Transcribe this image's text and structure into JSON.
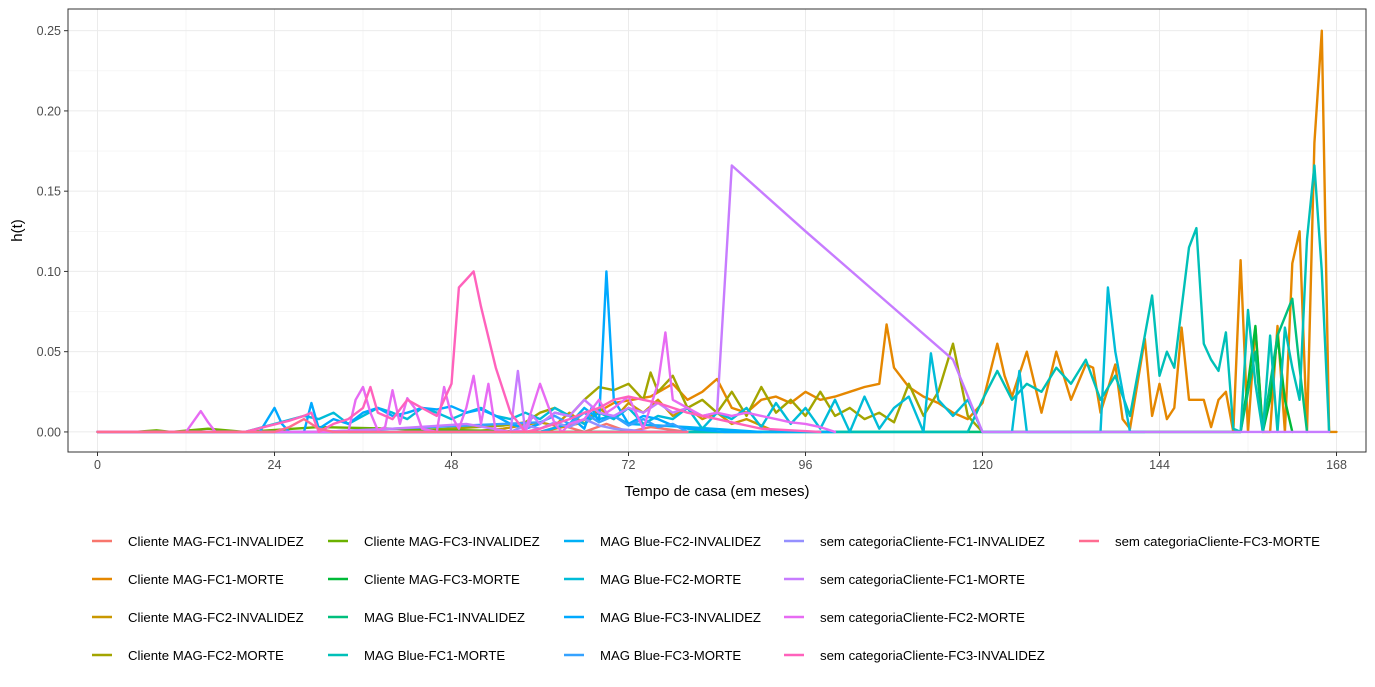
{
  "chart_data": {
    "type": "line",
    "title": "",
    "xlabel": "Tempo de casa (em meses)",
    "ylabel": "h(t)",
    "xlim": [
      -4,
      172
    ],
    "ylim": [
      -0.0125,
      0.2635
    ],
    "x_ticks": [
      0,
      24,
      48,
      72,
      96,
      120,
      144,
      168
    ],
    "x_tick_labels": [
      "0",
      "24",
      "48",
      "72",
      "96",
      "120",
      "144",
      "168"
    ],
    "y_ticks": [
      0,
      0.05,
      0.1,
      0.15,
      0.2,
      0.25
    ],
    "y_tick_labels": [
      "0.00",
      "0.05",
      "0.10",
      "0.15",
      "0.20",
      "0.25"
    ],
    "grid": true,
    "legend_position": "bottom",
    "series": [
      {
        "name": "Cliente MAG-FC1-INVALIDEZ",
        "color": "#F8766D",
        "x": [
          0,
          20,
          40,
          60,
          63,
          66,
          69,
          72,
          75,
          80,
          90
        ],
        "y": [
          0,
          0,
          0,
          0,
          0.004,
          0,
          0.005,
          0,
          0.003,
          0,
          0
        ]
      },
      {
        "name": "Cliente MAG-FC1-MORTE",
        "color": "#E58700",
        "x": [
          0,
          20,
          40,
          60,
          65,
          70,
          75,
          78,
          80,
          82,
          84,
          86,
          88,
          90,
          92,
          94,
          96,
          98,
          100,
          102,
          104,
          106,
          107,
          108,
          110,
          112,
          114,
          116,
          118,
          120,
          122,
          123,
          124,
          126,
          128,
          130,
          132,
          134,
          135,
          136,
          138,
          139,
          140,
          141,
          142,
          143,
          144,
          145,
          146,
          147,
          148,
          150,
          151,
          152,
          153,
          154,
          155,
          156,
          157,
          158,
          159,
          160,
          161,
          162,
          163,
          164,
          165,
          166,
          167,
          168
        ],
        "y": [
          0,
          0,
          0,
          0,
          0.005,
          0.018,
          0.022,
          0.03,
          0.02,
          0.025,
          0.033,
          0.015,
          0.012,
          0.02,
          0.022,
          0.018,
          0.025,
          0.02,
          0.022,
          0.025,
          0.028,
          0.03,
          0.067,
          0.04,
          0.028,
          0.022,
          0.018,
          0.012,
          0.008,
          0.018,
          0.055,
          0.035,
          0.022,
          0.05,
          0.012,
          0.05,
          0.02,
          0.042,
          0.04,
          0.012,
          0.042,
          0.008,
          0.002,
          0.03,
          0.058,
          0.01,
          0.03,
          0.008,
          0.015,
          0.065,
          0.02,
          0.02,
          0.003,
          0.02,
          0.025,
          0.0,
          0.107,
          0.0,
          0.065,
          0.0,
          0.0,
          0.066,
          0.0,
          0.105,
          0.125,
          0.0,
          0.18,
          0.25,
          0.0,
          0.0
        ]
      },
      {
        "name": "Cliente MAG-FC2-INVALIDEZ",
        "color": "#C99800",
        "x": [
          0,
          20,
          40,
          50,
          55,
          60,
          62,
          64,
          66,
          68,
          70,
          72,
          74,
          76,
          78,
          80,
          82,
          84,
          86,
          88,
          90,
          92
        ],
        "y": [
          0,
          0,
          0,
          0,
          0.002,
          0.006,
          0.004,
          0.012,
          0.005,
          0.015,
          0.008,
          0.018,
          0.012,
          0.02,
          0.01,
          0.015,
          0.008,
          0.012,
          0.005,
          0.008,
          0.004,
          0
        ]
      },
      {
        "name": "Cliente MAG-FC2-MORTE",
        "color": "#A3A500",
        "x": [
          0,
          20,
          40,
          55,
          58,
          60,
          62,
          64,
          66,
          68,
          70,
          72,
          74,
          75,
          76,
          78,
          80,
          82,
          84,
          86,
          88,
          90,
          92,
          94,
          96,
          98,
          100,
          102,
          104,
          106,
          108,
          110,
          112,
          114,
          116,
          118,
          120
        ],
        "y": [
          0,
          0,
          0,
          0.004,
          0.006,
          0.012,
          0.015,
          0.01,
          0.02,
          0.028,
          0.026,
          0.03,
          0.02,
          0.037,
          0.025,
          0.035,
          0.015,
          0.02,
          0.012,
          0.025,
          0.01,
          0.028,
          0.012,
          0.02,
          0.01,
          0.025,
          0.01,
          0.015,
          0.008,
          0.012,
          0.006,
          0.03,
          0.01,
          0.025,
          0.055,
          0.01,
          0
        ]
      },
      {
        "name": "Cliente MAG-FC3-INVALIDEZ",
        "color": "#6BB100",
        "x": [
          0,
          5,
          8,
          10,
          15,
          20,
          30,
          40,
          60,
          80
        ],
        "y": [
          0,
          0,
          0.001,
          0,
          0.002,
          0,
          0.003,
          0.002,
          0,
          0
        ]
      },
      {
        "name": "Cliente MAG-FC3-MORTE",
        "color": "#00BA38",
        "x": [
          0,
          60,
          120,
          140,
          155,
          156,
          157,
          158,
          159,
          160,
          161,
          162
        ],
        "y": [
          0,
          0,
          0,
          0,
          0,
          0.03,
          0.066,
          0.0,
          0.02,
          0.06,
          0.02,
          0
        ]
      },
      {
        "name": "MAG Blue-FC1-INVALIDEZ",
        "color": "#00BF7D",
        "x": [
          0,
          60,
          120,
          140,
          150,
          155,
          157,
          158,
          160,
          162,
          163,
          164
        ],
        "y": [
          0,
          0,
          0,
          0,
          0,
          0,
          0.05,
          0.0,
          0.06,
          0.083,
          0.04,
          0
        ]
      },
      {
        "name": "MAG Blue-FC1-MORTE",
        "color": "#00C0B8",
        "x": [
          0,
          110,
          118,
          120,
          122,
          124,
          126,
          128,
          130,
          132,
          134,
          136,
          138,
          140,
          142,
          143,
          144,
          145,
          146,
          148,
          149,
          150,
          151,
          152,
          153,
          154,
          155,
          156,
          157,
          158,
          159,
          160,
          161,
          162,
          163,
          164,
          165,
          166,
          167
        ],
        "y": [
          0,
          0,
          0,
          0.02,
          0.038,
          0.02,
          0.03,
          0.025,
          0.04,
          0.03,
          0.045,
          0.02,
          0.035,
          0.01,
          0.06,
          0.085,
          0.035,
          0.05,
          0.04,
          0.115,
          0.127,
          0.055,
          0.045,
          0.038,
          0.062,
          0.002,
          0.0,
          0.076,
          0.03,
          0.0,
          0.06,
          0.0,
          0.065,
          0.04,
          0.02,
          0.12,
          0.166,
          0.1,
          0
        ]
      },
      {
        "name": "MAG Blue-FC2-INVALIDEZ",
        "color": "#00B0F6",
        "x": [
          0,
          60,
          64,
          66,
          68,
          70,
          72,
          80,
          90,
          100
        ],
        "y": [
          0,
          0,
          0.005,
          0.015,
          0.008,
          0.01,
          0.005,
          0.003,
          0,
          0
        ]
      },
      {
        "name": "MAG Blue-FC2-MORTE",
        "color": "#00BCD8",
        "x": [
          0,
          20,
          28,
          30,
          32,
          34,
          36,
          38,
          40,
          42,
          44,
          46,
          48,
          50,
          52,
          54,
          56,
          58,
          60,
          62,
          64,
          66,
          68,
          70,
          72,
          74,
          76,
          78,
          80,
          82,
          84,
          86,
          88,
          90,
          92,
          94,
          96,
          98,
          100,
          102,
          104,
          106,
          108,
          110,
          112,
          113,
          114,
          116,
          118,
          120,
          122,
          124,
          125,
          126,
          128,
          130,
          132,
          134,
          136,
          137,
          138,
          140,
          142
        ],
        "y": [
          0,
          0,
          0.01,
          0.008,
          0.012,
          0.005,
          0.01,
          0.015,
          0.012,
          0.008,
          0.015,
          0.012,
          0.008,
          0.012,
          0.015,
          0.01,
          0.008,
          0.012,
          0.008,
          0.015,
          0.01,
          0.005,
          0.012,
          0.008,
          0.015,
          0.005,
          0.01,
          0.008,
          0.015,
          0.002,
          0.012,
          0.008,
          0.015,
          0.003,
          0.018,
          0.005,
          0.015,
          0.002,
          0.02,
          0.0,
          0.022,
          0.002,
          0.015,
          0.022,
          0.0,
          0.049,
          0.02,
          0.01,
          0.02,
          0.0,
          0.0,
          0.0,
          0.038,
          0.0,
          0.0,
          0.0,
          0.0,
          0.0,
          0.0,
          0.09,
          0.05,
          0.0,
          0
        ]
      },
      {
        "name": "MAG Blue-FC3-INVALIDEZ",
        "color": "#00A9FF",
        "x": [
          0,
          22,
          24,
          25,
          26,
          28,
          29,
          30,
          32,
          34,
          36,
          38,
          40,
          42,
          44,
          46,
          48,
          50,
          52,
          54,
          56,
          58,
          60,
          62,
          64,
          66,
          67,
          68,
          69,
          70,
          72,
          74,
          76,
          78,
          80,
          85,
          90
        ],
        "y": [
          0,
          0,
          0.015,
          0.005,
          0,
          0,
          0.018,
          0.002,
          0.008,
          0.005,
          0.012,
          0.015,
          0.01,
          0.012,
          0.015,
          0.014,
          0.016,
          0.012,
          0.014,
          0.01,
          0.005,
          0.002,
          0.005,
          0.012,
          0.01,
          0.002,
          0.015,
          0.006,
          0.1,
          0.02,
          0.005,
          0.01,
          0.008,
          0.004,
          0.002,
          0,
          0
        ]
      },
      {
        "name": "MAG Blue-FC3-MORTE",
        "color": "#35A2FF",
        "x": [
          0,
          30,
          40,
          50,
          60,
          62,
          64,
          66,
          68,
          70,
          72,
          74,
          76,
          78,
          80
        ],
        "y": [
          0,
          0,
          0.002,
          0.004,
          0.006,
          0.01,
          0.005,
          0.012,
          0.006,
          0.01,
          0.004,
          0.008,
          0.003,
          0.005,
          0
        ]
      },
      {
        "name": "sem categoriaCliente-FC1-INVALIDEZ",
        "color": "#9590FF",
        "x": [
          0,
          40,
          50,
          56,
          58,
          60,
          62,
          64,
          66,
          68,
          70,
          75,
          80
        ],
        "y": [
          0,
          0,
          0,
          0,
          0.004,
          0.002,
          0.006,
          0.003,
          0.008,
          0.004,
          0.002,
          0,
          0
        ]
      },
      {
        "name": "sem categoriaCliente-FC1-MORTE",
        "color": "#C77CFF",
        "x": [
          0,
          30,
          40,
          50,
          56,
          57,
          58,
          59,
          60,
          62,
          64,
          66,
          68,
          70,
          72,
          74,
          76,
          78,
          80,
          82,
          84,
          86,
          96,
          106,
          116,
          120,
          130,
          140,
          150,
          160,
          167
        ],
        "y": [
          0,
          0,
          0.002,
          0.005,
          0.0,
          0.038,
          0.0,
          0.01,
          0.005,
          0.012,
          0.01,
          0.02,
          0.012,
          0.01,
          0.015,
          0.012,
          0.018,
          0.012,
          0.015,
          0.01,
          0.012,
          0.166,
          0.125,
          0.085,
          0.045,
          0.0,
          0.0,
          0.0,
          0.0,
          0.0,
          0
        ]
      },
      {
        "name": "sem categoriaCliente-FC2-MORTE",
        "color": "#E76BF3",
        "x": [
          0,
          10,
          12,
          14,
          15,
          16,
          18,
          20,
          34,
          35,
          36,
          37,
          38,
          39,
          40,
          41,
          42,
          43,
          44,
          46,
          47,
          48,
          49,
          50,
          51,
          52,
          53,
          54,
          56,
          58,
          60,
          62,
          63,
          64,
          66,
          68,
          69,
          70,
          72,
          74,
          76,
          77,
          78,
          80,
          82,
          84,
          86,
          88,
          90,
          92,
          94,
          96,
          98,
          100
        ],
        "y": [
          0,
          0,
          0,
          0.013,
          0.006,
          0.0,
          0.0,
          0,
          0.0,
          0.02,
          0.028,
          0.012,
          0.001,
          0.003,
          0.026,
          0.005,
          0.021,
          0.015,
          0.002,
          0.0,
          0.028,
          0.01,
          0.002,
          0.015,
          0.035,
          0.005,
          0.03,
          0.0,
          0.0,
          0.001,
          0.03,
          0.005,
          0.0,
          0.005,
          0.008,
          0.02,
          0.012,
          0.015,
          0.022,
          0.002,
          0.03,
          0.062,
          0.02,
          0.015,
          0.01,
          0.012,
          0.01,
          0.012,
          0.01,
          0.008,
          0.006,
          0.005,
          0.003,
          0
        ]
      },
      {
        "name": "sem categoriaCliente-FC3-INVALIDEZ",
        "color": "#FF62BC",
        "x": [
          0,
          20,
          26,
          28,
          29,
          30,
          32,
          34,
          36,
          37,
          38,
          40,
          42,
          44,
          46,
          48,
          49,
          50,
          51,
          52,
          54,
          56,
          58,
          60,
          62,
          64,
          66,
          68,
          70,
          72,
          74,
          76,
          78,
          80,
          82,
          84,
          86,
          88,
          90,
          94,
          98
        ],
        "y": [
          0,
          0,
          0.007,
          0.01,
          0.012,
          0.0,
          0.005,
          0.008,
          0.015,
          0.028,
          0.012,
          0.008,
          0.02,
          0.015,
          0.01,
          0.03,
          0.09,
          0.095,
          0.1,
          0.078,
          0.04,
          0.012,
          0.0,
          0.002,
          0.005,
          0.008,
          0.012,
          0.015,
          0.02,
          0.022,
          0.02,
          0.018,
          0.015,
          0.012,
          0.01,
          0.008,
          0.006,
          0.004,
          0.002,
          0.001,
          0
        ]
      },
      {
        "name": "sem categoriaCliente-FC3-MORTE",
        "color": "#FF6C91",
        "x": [
          0,
          10,
          20,
          24,
          26,
          28,
          30,
          32,
          34,
          40,
          50,
          60,
          70,
          80
        ],
        "y": [
          0,
          0,
          0,
          0,
          0.003,
          0.008,
          0.002,
          0.0,
          0,
          0,
          0,
          0,
          0,
          0
        ]
      }
    ]
  }
}
